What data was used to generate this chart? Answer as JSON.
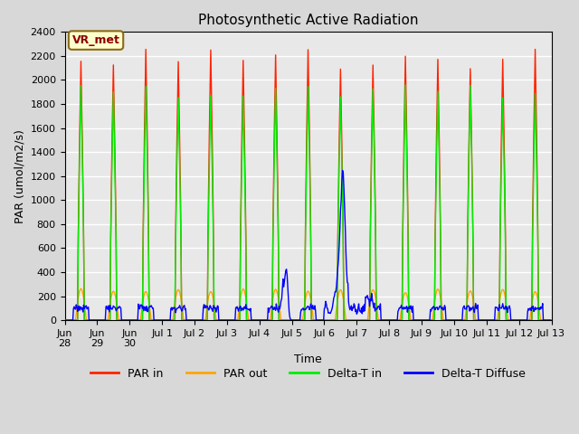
{
  "title": "Photosynthetic Active Radiation",
  "ylabel": "PAR (umol/m2/s)",
  "xlabel": "Time",
  "ylim": [
    0,
    2400
  ],
  "annotation_text": "VR_met",
  "legend_labels": [
    "PAR in",
    "PAR out",
    "Delta-T in",
    "Delta-T Diffuse"
  ],
  "legend_colors": [
    "#ff2200",
    "#ffa500",
    "#00ee00",
    "#0000ff"
  ],
  "fig_facecolor": "#d8d8d8",
  "ax_facecolor": "#e8e8e8",
  "num_days": 15,
  "peak_par_in": 2200,
  "peak_par_out": 250,
  "peak_delta_t_in": 2000,
  "baseline_diffuse": 100,
  "spike_day": 8.5,
  "spike2_day": 6.3,
  "tick_labels": [
    "Jun\n28",
    "Jun\n29",
    "Jun\n30",
    "Jul 1",
    "Jul 2",
    "Jul 3",
    "Jul 4",
    "Jul 5",
    "Jul 6",
    "Jul 7",
    "Jul 8",
    "Jul 9",
    "Jul 10",
    "Jul 11",
    "Jul 12",
    "Jul 13"
  ]
}
